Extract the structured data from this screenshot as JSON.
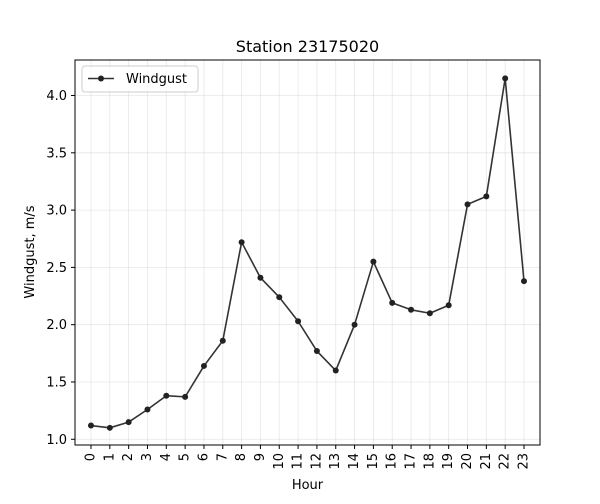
{
  "chart_data": {
    "type": "line",
    "title": "Station 23175020",
    "xlabel": "Hour",
    "ylabel": "Windgust, m/s",
    "x": [
      0,
      1,
      2,
      3,
      4,
      5,
      6,
      7,
      8,
      9,
      10,
      11,
      12,
      13,
      14,
      15,
      16,
      17,
      18,
      19,
      20,
      21,
      22,
      23
    ],
    "x_tick_labels": [
      "0",
      "1",
      "2",
      "3",
      "4",
      "5",
      "6",
      "7",
      "8",
      "9",
      "10",
      "11",
      "12",
      "13",
      "14",
      "15",
      "16",
      "17",
      "18",
      "19",
      "20",
      "21",
      "22",
      "23"
    ],
    "y_ticks": [
      1.0,
      1.5,
      2.0,
      2.5,
      3.0,
      3.5,
      4.0
    ],
    "y_tick_labels": [
      "1.0",
      "1.5",
      "2.0",
      "2.5",
      "3.0",
      "3.5",
      "4.0"
    ],
    "series": [
      {
        "name": "Windgust",
        "color": "#333333",
        "values": [
          1.12,
          1.1,
          1.15,
          1.26,
          1.38,
          1.37,
          1.64,
          1.86,
          2.72,
          2.41,
          2.24,
          2.03,
          1.77,
          1.6,
          2.0,
          2.55,
          2.19,
          2.13,
          2.1,
          2.17,
          3.05,
          3.12,
          4.15,
          2.38
        ]
      }
    ],
    "xlim": [
      -0.85,
      23.85
    ],
    "ylim": [
      0.95,
      4.31
    ],
    "grid": true,
    "legend_position": "top-left"
  }
}
